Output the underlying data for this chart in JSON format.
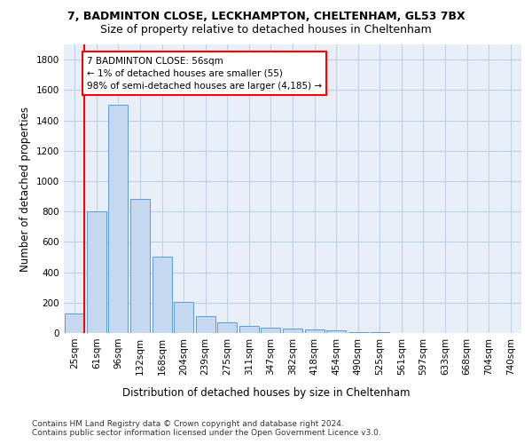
{
  "title_line1": "7, BADMINTON CLOSE, LECKHAMPTON, CHELTENHAM, GL53 7BX",
  "title_line2": "Size of property relative to detached houses in Cheltenham",
  "xlabel": "Distribution of detached houses by size in Cheltenham",
  "ylabel": "Number of detached properties",
  "bar_labels": [
    "25sqm",
    "61sqm",
    "96sqm",
    "132sqm",
    "168sqm",
    "204sqm",
    "239sqm",
    "275sqm",
    "311sqm",
    "347sqm",
    "382sqm",
    "418sqm",
    "454sqm",
    "490sqm",
    "525sqm",
    "561sqm",
    "597sqm",
    "633sqm",
    "668sqm",
    "704sqm",
    "740sqm"
  ],
  "bar_values": [
    130,
    800,
    1500,
    880,
    500,
    205,
    110,
    70,
    45,
    33,
    30,
    25,
    15,
    5,
    3,
    2,
    2,
    2,
    1,
    1,
    1
  ],
  "bar_color": "#c5d8f0",
  "bar_edge_color": "#5b9bd5",
  "annotation_text": "7 BADMINTON CLOSE: 56sqm\n← 1% of detached houses are smaller (55)\n98% of semi-detached houses are larger (4,185) →",
  "annotation_box_color": "white",
  "annotation_box_edge_color": "red",
  "vline_color": "red",
  "ylim": [
    0,
    1900
  ],
  "yticks": [
    0,
    200,
    400,
    600,
    800,
    1000,
    1200,
    1400,
    1600,
    1800
  ],
  "footer_text": "Contains HM Land Registry data © Crown copyright and database right 2024.\nContains public sector information licensed under the Open Government Licence v3.0.",
  "background_color": "#e8eff8",
  "grid_color": "#c0cfe8",
  "title_fontsize": 9,
  "subtitle_fontsize": 9,
  "axis_label_fontsize": 8.5,
  "tick_fontsize": 7.5,
  "annotation_fontsize": 7.5,
  "footer_fontsize": 6.5
}
